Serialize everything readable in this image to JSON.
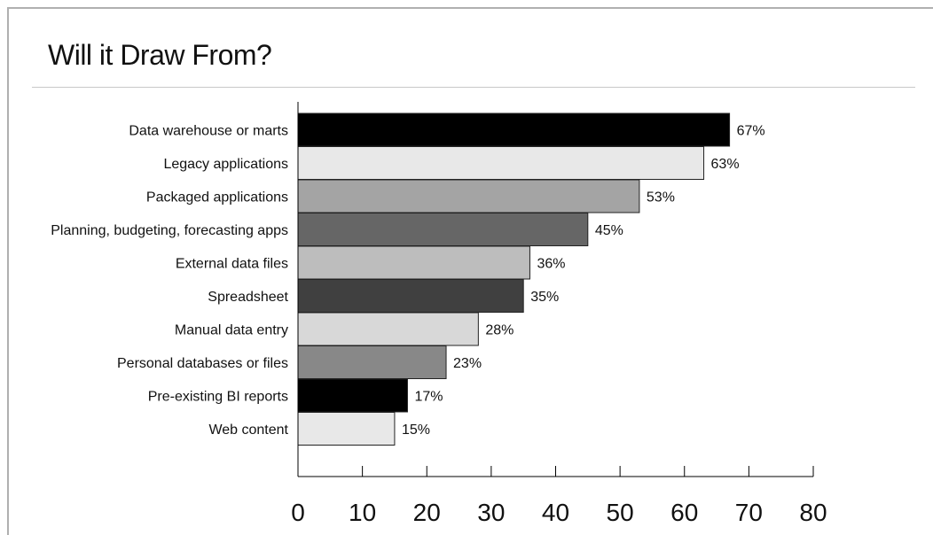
{
  "chart_data": {
    "type": "bar",
    "orientation": "horizontal",
    "title": "Will it Draw From?",
    "categories": [
      "Data warehouse or marts",
      "Legacy applications",
      "Packaged applications",
      "Planning, budgeting, forecasting apps",
      "External data files",
      "Spreadsheet",
      "Manual data entry",
      "Personal databases or files",
      "Pre-existing BI reports",
      "Web content"
    ],
    "values": [
      67,
      63,
      53,
      45,
      36,
      35,
      28,
      23,
      17,
      15
    ],
    "value_labels": [
      "67%",
      "63%",
      "53%",
      "45%",
      "36%",
      "35%",
      "28%",
      "23%",
      "17%",
      "15%"
    ],
    "bar_colors": [
      "#000000",
      "#e8e8e8",
      "#a4a4a4",
      "#666666",
      "#bdbdbd",
      "#404040",
      "#d8d8d8",
      "#888888",
      "#000000",
      "#e8e8e8"
    ],
    "xticks": [
      0,
      10,
      20,
      30,
      40,
      50,
      60,
      70,
      80
    ],
    "xlim": [
      0,
      80
    ],
    "xlabel": "",
    "ylabel": "",
    "grid": false,
    "legend": "none"
  }
}
